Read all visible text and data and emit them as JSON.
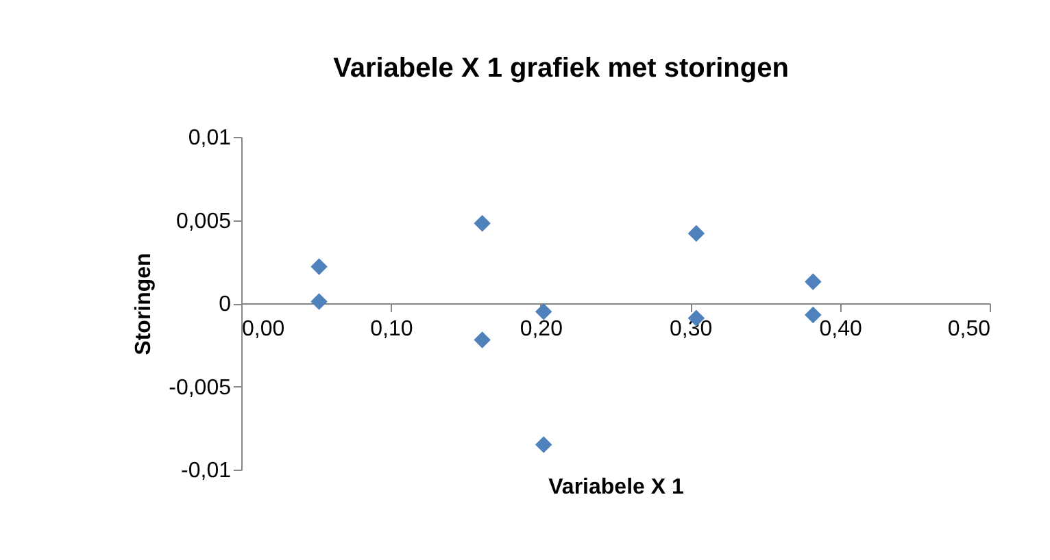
{
  "chart_data": {
    "type": "scatter",
    "title": "Variabele X 1 grafiek met storingen",
    "xlabel": "Variabele X 1",
    "ylabel": "Storingen",
    "x": [
      0.052,
      0.052,
      0.161,
      0.161,
      0.202,
      0.202,
      0.304,
      0.304,
      0.382,
      0.382
    ],
    "series": [
      {
        "color": "#4f81bd",
        "values": [
          0.0022,
          0.0001,
          0.0048,
          -0.0022,
          -0.0005,
          -0.0085,
          0.0042,
          -0.0009,
          0.0013,
          -0.0007
        ]
      }
    ],
    "xlim": [
      0,
      0.5
    ],
    "xticks": [
      {
        "value": 0,
        "label": "0,00"
      },
      {
        "value": 0.1,
        "label": "0,10"
      },
      {
        "value": 0.2,
        "label": "0,20"
      },
      {
        "value": 0.3,
        "label": "0,30"
      },
      {
        "value": 0.4,
        "label": "0,40"
      },
      {
        "value": 0.5,
        "label": "0,50"
      }
    ],
    "ylim": [
      -0.01,
      0.01
    ],
    "yticks": [
      {
        "value": -0.01,
        "label": "-0,01"
      },
      {
        "value": -0.005,
        "label": "-0,005"
      },
      0,
      {
        "value": 0.005,
        "label": "0,005"
      },
      {
        "value": 0.01,
        "label": "0,01"
      }
    ],
    "marker": "diamond",
    "grid": false
  }
}
